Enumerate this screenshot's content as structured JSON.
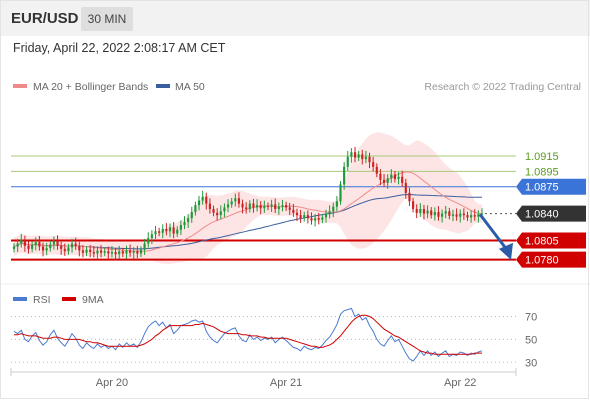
{
  "header": {
    "symbol": "EUR/USD",
    "timeframe": "30 MIN"
  },
  "datetime": "Friday, April 22, 2022 2:08:17 AM CET",
  "legend": {
    "ma20": "MA 20 + Bollinger Bands",
    "ma50": "MA 50",
    "copyright": "Research © 2022 Trading Central",
    "rsi": "RSI",
    "rsi_ma": "9MA"
  },
  "colors": {
    "candle_up": "#1f9a3a",
    "candle_down": "#cc2222",
    "bollinger_fill": "#fde0e0",
    "ma20": "#f08a8a",
    "ma50": "#3a5f9e",
    "pivot": "#3a74d8",
    "support": "#d10000",
    "resistance": "#a8c97a",
    "arrow": "#2a5ca8",
    "last_price_label": "#333333"
  },
  "chart_data": [
    {
      "type": "candlestick",
      "ylim": [
        1.076,
        1.0975
      ],
      "x_ticks": [
        "Apr 20",
        "Apr 21",
        "Apr 22"
      ],
      "levels": [
        {
          "value": 1.0915,
          "label": "1.0915",
          "kind": "resistance"
        },
        {
          "value": 1.0895,
          "label": "1.0895",
          "kind": "resistance"
        },
        {
          "value": 1.0875,
          "label": "1.0875",
          "kind": "pivot"
        },
        {
          "value": 1.084,
          "label": "1.0840",
          "kind": "last"
        },
        {
          "value": 1.0805,
          "label": "1.0805",
          "kind": "support"
        },
        {
          "value": 1.078,
          "label": "1.0780",
          "kind": "support"
        }
      ],
      "last_price": 1.084,
      "projection": {
        "from": 1.0839,
        "to": 1.0781
      },
      "close": [
        1.0797,
        1.0801,
        1.0806,
        1.0798,
        1.0794,
        1.0799,
        1.0803,
        1.0797,
        1.0792,
        1.0795,
        1.08,
        1.0804,
        1.0798,
        1.0794,
        1.0791,
        1.0796,
        1.0801,
        1.0798,
        1.0792,
        1.0789,
        1.0793,
        1.079,
        1.0788,
        1.0792,
        1.0789,
        1.0791,
        1.0788,
        1.079,
        1.0787,
        1.0791,
        1.0788,
        1.0792,
        1.0789,
        1.0791,
        1.0788,
        1.0793,
        1.0801,
        1.0808,
        1.0813,
        1.0817,
        1.0815,
        1.082,
        1.0817,
        1.0822,
        1.0814,
        1.0819,
        1.0825,
        1.0829,
        1.0834,
        1.0842,
        1.0851,
        1.0857,
        1.0862,
        1.0853,
        1.0846,
        1.0841,
        1.0838,
        1.0843,
        1.0848,
        1.0852,
        1.0856,
        1.086,
        1.0853,
        1.0848,
        1.0846,
        1.0853,
        1.0848,
        1.0851,
        1.0847,
        1.085,
        1.0849,
        1.0852,
        1.0846,
        1.0849,
        1.0851,
        1.0848,
        1.0845,
        1.0841,
        1.0838,
        1.0834,
        1.0838,
        1.0834,
        1.0831,
        1.0834,
        1.0832,
        1.0835,
        1.0839,
        1.0843,
        1.0849,
        1.0856,
        1.0878,
        1.0901,
        1.0914,
        1.092,
        1.0913,
        1.0917,
        1.0911,
        1.0914,
        1.0907,
        1.0901,
        1.0892,
        1.0884,
        1.088,
        1.0886,
        1.0891,
        1.0885,
        1.0888,
        1.088,
        1.0867,
        1.0856,
        1.0846,
        1.0841,
        1.0846,
        1.084,
        1.0844,
        1.0838,
        1.0842,
        1.0836,
        1.084,
        1.0843,
        1.0837,
        1.0839,
        1.0836,
        1.084,
        1.0838,
        1.0835,
        1.0838,
        1.0836,
        1.0839,
        1.084
      ]
    },
    {
      "type": "line",
      "title": "RSI",
      "ylim": [
        25,
        80
      ],
      "y_ticks": [
        70,
        50,
        30
      ],
      "series": [
        {
          "name": "RSI",
          "values": [
            57,
            55,
            58,
            50,
            48,
            53,
            56,
            49,
            45,
            48,
            54,
            58,
            51,
            47,
            44,
            49,
            55,
            51,
            45,
            42,
            47,
            44,
            42,
            46,
            43,
            45,
            42,
            44,
            41,
            46,
            43,
            47,
            44,
            46,
            43,
            48,
            55,
            61,
            64,
            66,
            62,
            65,
            60,
            63,
            55,
            58,
            62,
            63,
            64,
            66,
            67,
            65,
            66,
            57,
            52,
            49,
            47,
            51,
            55,
            57,
            59,
            60,
            53,
            49,
            48,
            54,
            50,
            52,
            49,
            51,
            50,
            52,
            47,
            50,
            52,
            49,
            46,
            43,
            42,
            40,
            44,
            42,
            41,
            43,
            42,
            45,
            49,
            52,
            57,
            63,
            72,
            75,
            76,
            77,
            70,
            72,
            67,
            69,
            62,
            57,
            50,
            46,
            44,
            49,
            53,
            48,
            50,
            44,
            38,
            33,
            31,
            35,
            40,
            36,
            40,
            36,
            39,
            35,
            38,
            40,
            35,
            37,
            36,
            39,
            38,
            36,
            38,
            37,
            39,
            40
          ]
        },
        {
          "name": "9MA",
          "values": [
            54,
            54,
            55,
            54,
            53,
            53,
            53,
            52,
            51,
            51,
            51,
            52,
            52,
            51,
            50,
            50,
            50,
            50,
            50,
            49,
            48,
            48,
            47,
            47,
            46,
            45,
            44,
            44,
            44,
            44,
            44,
            44,
            44,
            44,
            44,
            45,
            46,
            48,
            50,
            53,
            55,
            58,
            60,
            62,
            62,
            62,
            62,
            62,
            62,
            62,
            63,
            63,
            64,
            63,
            62,
            61,
            59,
            57,
            56,
            55,
            55,
            55,
            55,
            54,
            54,
            53,
            53,
            53,
            52,
            52,
            51,
            51,
            51,
            51,
            51,
            51,
            50,
            49,
            48,
            47,
            46,
            45,
            44,
            44,
            43,
            43,
            44,
            45,
            47,
            50,
            53,
            57,
            61,
            65,
            68,
            70,
            71,
            71,
            70,
            68,
            65,
            62,
            59,
            57,
            55,
            53,
            52,
            50,
            48,
            46,
            44,
            42,
            40,
            39,
            38,
            38,
            37,
            37,
            37,
            37,
            37,
            37,
            37,
            37,
            37,
            37,
            37,
            38,
            38,
            38
          ]
        }
      ]
    }
  ]
}
